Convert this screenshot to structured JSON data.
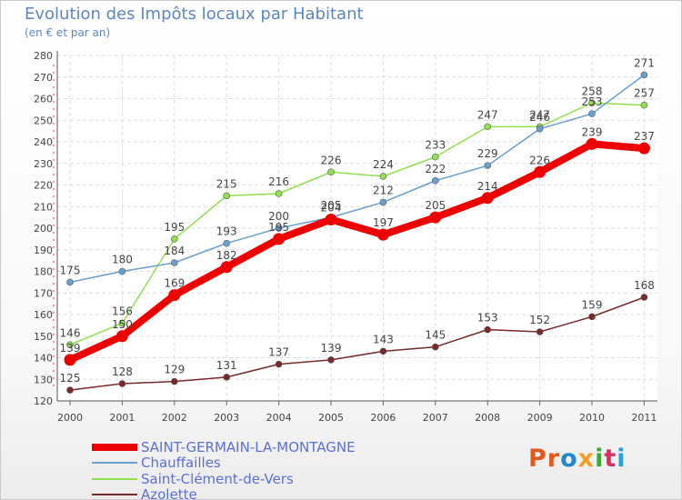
{
  "header": {
    "title": "Evolution des Impôts locaux par Habitant",
    "subtitle": "(en € et par an)"
  },
  "logo": {
    "text": "Proxiti",
    "parts": [
      "Pr",
      "o",
      "x",
      "i",
      "t",
      "i"
    ]
  },
  "chart_data": {
    "type": "line",
    "title": "Evolution des Impôts locaux par Habitant",
    "subtitle": "(en € et par an)",
    "x": [
      "2000",
      "2001",
      "2002",
      "2003",
      "2004",
      "2005",
      "2006",
      "2007",
      "2008",
      "2009",
      "2010",
      "2011"
    ],
    "ylim": [
      120,
      280
    ],
    "yticks": [
      120,
      130,
      140,
      150,
      160,
      170,
      180,
      190,
      200,
      210,
      220,
      230,
      240,
      250,
      260,
      270,
      280
    ],
    "grid": true,
    "legend_position": "bottom-left",
    "series": [
      {
        "name": "SAINT-GERMAIN-LA-MONTAGNE",
        "color": "#ee0000",
        "values": [
          139,
          150,
          169,
          182,
          195,
          204,
          197,
          205,
          214,
          226,
          239,
          237
        ]
      },
      {
        "name": "Chauffailles",
        "color": "#6aa0d0",
        "values": [
          175,
          180,
          184,
          193,
          200,
          205,
          212,
          222,
          229,
          246,
          253,
          271
        ]
      },
      {
        "name": "Saint-Clément-de-Vers",
        "color": "#90e050",
        "values": [
          146,
          156,
          195,
          215,
          216,
          226,
          224,
          233,
          247,
          247,
          258,
          257
        ]
      },
      {
        "name": "Azolette",
        "color": "#7a2a2a",
        "values": [
          125,
          128,
          129,
          131,
          137,
          139,
          143,
          145,
          153,
          152,
          159,
          168
        ]
      }
    ]
  }
}
